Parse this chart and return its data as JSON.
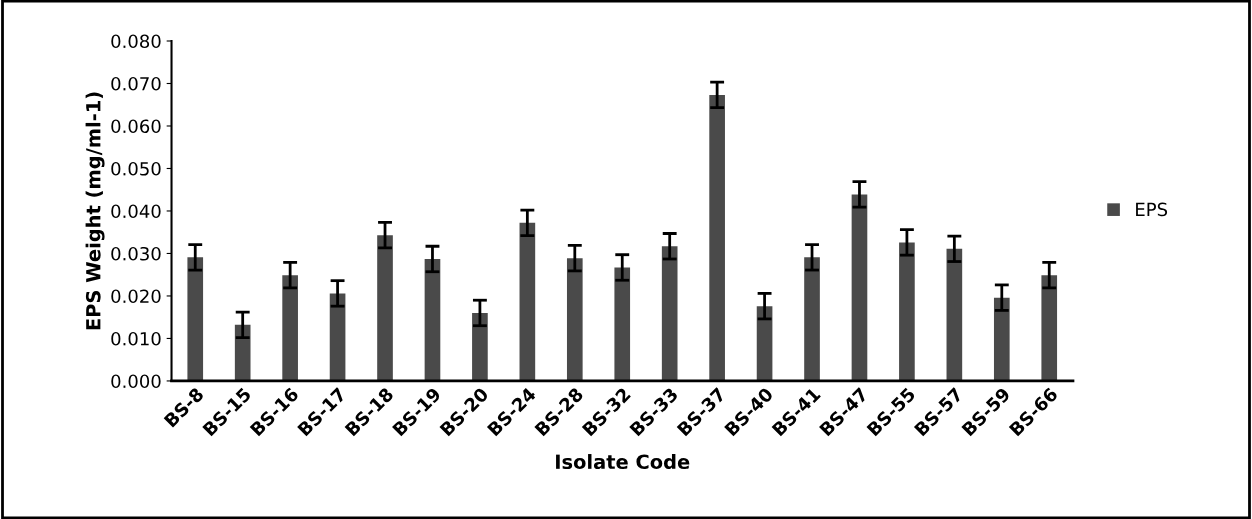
{
  "chart_data": {
    "type": "bar",
    "xlabel": "Isolate Code",
    "ylabel": "EPS Weight (mg/ml-1)",
    "categories": [
      "BS-8",
      "BS-15",
      "BS-16",
      "BS-17",
      "BS-18",
      "BS-19",
      "BS-20",
      "BS-24",
      "BS-28",
      "BS-32",
      "BS-33",
      "BS-37",
      "BS-40",
      "BS-41",
      "BS-47",
      "BS-55",
      "BS-57",
      "BS-59",
      "BS-66"
    ],
    "series": [
      {
        "name": "EPS",
        "color": "#4a4a4a",
        "values": [
          0.0291,
          0.0132,
          0.0249,
          0.0206,
          0.0343,
          0.0287,
          0.016,
          0.0372,
          0.0289,
          0.0267,
          0.0317,
          0.0673,
          0.0176,
          0.0291,
          0.0439,
          0.0326,
          0.0311,
          0.0196,
          0.0249
        ],
        "errors": [
          0.003,
          0.003,
          0.003,
          0.003,
          0.003,
          0.003,
          0.003,
          0.003,
          0.003,
          0.003,
          0.003,
          0.003,
          0.003,
          0.003,
          0.003,
          0.003,
          0.003,
          0.003,
          0.003
        ]
      }
    ],
    "ylim": [
      0,
      0.08
    ],
    "yticks": [
      {
        "value": 0,
        "label": "0.000"
      },
      {
        "value": 0.01,
        "label": "0.010"
      },
      {
        "value": 0.02,
        "label": "0.020"
      },
      {
        "value": 0.03,
        "label": "0.030"
      },
      {
        "value": 0.04,
        "label": "0.040"
      },
      {
        "value": 0.05,
        "label": "0.050"
      },
      {
        "value": 0.06,
        "label": "0.060"
      },
      {
        "value": 0.07,
        "label": "0.070"
      },
      {
        "value": 0.08,
        "label": "0.080"
      }
    ],
    "grid": false,
    "legend": "right"
  }
}
